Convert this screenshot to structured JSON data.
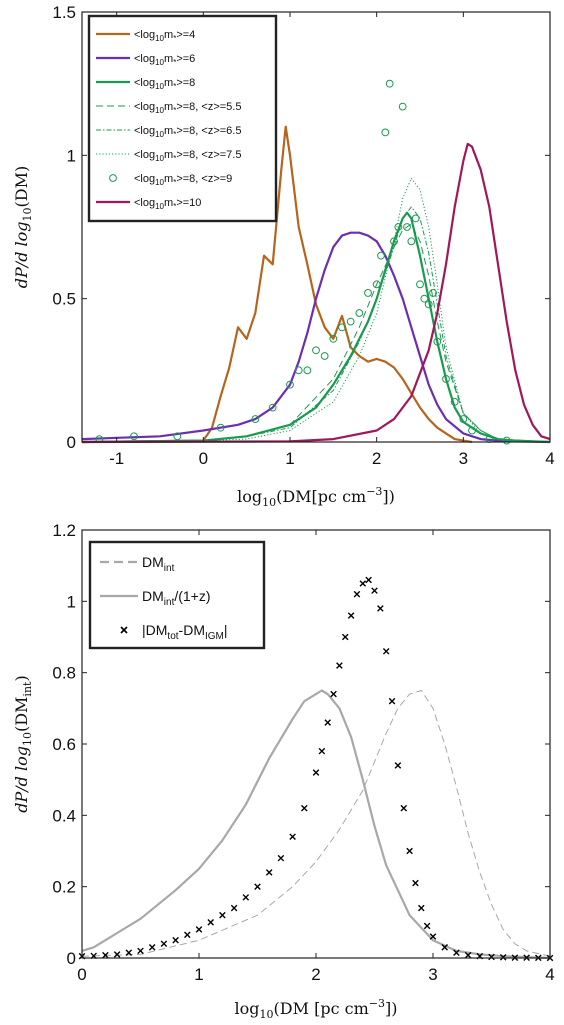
{
  "chart_data": [
    {
      "type": "line",
      "xlabel": "log10(DM[pc cm^-3])",
      "ylabel": "dP/dlog10(DM)",
      "xlim": [
        -1.4,
        4
      ],
      "ylim": [
        0,
        1.5
      ],
      "xticks": [
        "-1",
        "0",
        "1",
        "2",
        "3",
        "4"
      ],
      "yticks": [
        "0",
        "0.5",
        "1",
        "1.5"
      ],
      "grid": false,
      "legend_position": "top-left",
      "series": [
        {
          "name": "<log10m*>=4",
          "style": "solid",
          "color": "#b5651d",
          "x": [
            -1.4,
            0,
            0.1,
            0.2,
            0.3,
            0.4,
            0.5,
            0.6,
            0.7,
            0.8,
            0.9,
            0.95,
            1.0,
            1.1,
            1.2,
            1.3,
            1.4,
            1.5,
            1.6,
            1.7,
            1.8,
            1.9,
            2.0,
            2.1,
            2.2,
            2.3,
            2.4,
            2.5,
            2.6,
            2.7,
            2.8,
            2.9,
            3.0,
            3.1
          ],
          "y": [
            0,
            0.005,
            0.05,
            0.16,
            0.26,
            0.4,
            0.36,
            0.45,
            0.65,
            0.62,
            0.95,
            1.1,
            1.0,
            0.75,
            0.62,
            0.48,
            0.4,
            0.36,
            0.44,
            0.33,
            0.3,
            0.28,
            0.29,
            0.28,
            0.26,
            0.22,
            0.17,
            0.12,
            0.08,
            0.05,
            0.03,
            0.01,
            0.005,
            0
          ]
        },
        {
          "name": "<log10m*>=6",
          "style": "solid",
          "color": "#6b2fb3",
          "x": [
            -1.4,
            -0.5,
            0,
            0.4,
            0.6,
            0.8,
            1.0,
            1.1,
            1.2,
            1.3,
            1.4,
            1.5,
            1.6,
            1.7,
            1.8,
            1.9,
            2.0,
            2.1,
            2.2,
            2.3,
            2.4,
            2.5,
            2.6,
            2.7,
            2.8,
            3.0,
            3.2,
            3.4,
            3.6,
            3.8,
            4.0
          ],
          "y": [
            0.01,
            0.02,
            0.04,
            0.06,
            0.08,
            0.12,
            0.2,
            0.28,
            0.38,
            0.5,
            0.6,
            0.68,
            0.72,
            0.73,
            0.73,
            0.72,
            0.7,
            0.65,
            0.58,
            0.5,
            0.4,
            0.3,
            0.2,
            0.13,
            0.08,
            0.03,
            0.01,
            0.005,
            0.002,
            0.001,
            0
          ]
        },
        {
          "name": "<log10m*>=8",
          "style": "solid",
          "color": "#1a9a50",
          "x": [
            -1.4,
            0,
            0.5,
            1.0,
            1.3,
            1.5,
            1.7,
            1.9,
            2.0,
            2.1,
            2.2,
            2.3,
            2.35,
            2.4,
            2.5,
            2.6,
            2.7,
            2.8,
            2.9,
            3.0,
            3.2,
            3.4,
            3.6,
            4.0
          ],
          "y": [
            0,
            0.005,
            0.02,
            0.06,
            0.12,
            0.2,
            0.3,
            0.42,
            0.5,
            0.6,
            0.7,
            0.78,
            0.8,
            0.78,
            0.65,
            0.5,
            0.35,
            0.22,
            0.12,
            0.07,
            0.03,
            0.01,
            0.005,
            0
          ]
        },
        {
          "name": "<log10m*>=8, <z>=5.5",
          "style": "dashed",
          "color": "#1a9a50",
          "x": [
            -1.4,
            0,
            0.5,
            1.0,
            1.5,
            1.8,
            2.0,
            2.2,
            2.3,
            2.4,
            2.5,
            2.6,
            2.7,
            2.8,
            3.0,
            3.2,
            3.4,
            4.0
          ],
          "y": [
            0,
            0.005,
            0.02,
            0.06,
            0.22,
            0.4,
            0.55,
            0.68,
            0.74,
            0.76,
            0.7,
            0.58,
            0.42,
            0.28,
            0.1,
            0.04,
            0.01,
            0
          ]
        },
        {
          "name": "<log10m*>=8, <z>=6.5",
          "style": "dashdot",
          "color": "#1a9a50",
          "x": [
            -1.4,
            0,
            0.5,
            1.0,
            1.5,
            1.8,
            2.0,
            2.2,
            2.3,
            2.4,
            2.5,
            2.6,
            2.7,
            2.8,
            3.0,
            3.2,
            3.4,
            4.0
          ],
          "y": [
            0,
            0.005,
            0.02,
            0.05,
            0.18,
            0.35,
            0.5,
            0.68,
            0.78,
            0.82,
            0.78,
            0.66,
            0.48,
            0.3,
            0.1,
            0.04,
            0.01,
            0
          ]
        },
        {
          "name": "<log10m*>=8, <z>=7.5",
          "style": "dotted",
          "color": "#1a9a50",
          "x": [
            -1.4,
            0,
            0.5,
            1.0,
            1.5,
            1.8,
            2.0,
            2.2,
            2.3,
            2.4,
            2.5,
            2.6,
            2.7,
            2.8,
            3.0,
            3.2,
            3.4,
            4.0
          ],
          "y": [
            0,
            0.005,
            0.01,
            0.04,
            0.14,
            0.3,
            0.45,
            0.7,
            0.85,
            0.92,
            0.88,
            0.75,
            0.55,
            0.33,
            0.1,
            0.03,
            0.01,
            0
          ]
        },
        {
          "name": "<log10m*>=8, <z>=9",
          "style": "circles",
          "color": "#1a9a50",
          "x": [
            -1.2,
            -0.8,
            -0.3,
            0.2,
            0.6,
            0.8,
            1.0,
            1.1,
            1.2,
            1.3,
            1.4,
            1.5,
            1.6,
            1.7,
            1.8,
            1.9,
            2.0,
            2.05,
            2.1,
            2.15,
            2.2,
            2.25,
            2.3,
            2.35,
            2.4,
            2.45,
            2.5,
            2.55,
            2.6,
            2.65,
            2.7,
            2.8,
            2.9,
            3.0,
            3.1,
            3.3,
            3.5
          ],
          "y": [
            0.01,
            0.02,
            0.02,
            0.05,
            0.08,
            0.12,
            0.2,
            0.25,
            0.25,
            0.32,
            0.3,
            0.36,
            0.4,
            0.42,
            0.45,
            0.52,
            0.55,
            0.65,
            1.08,
            1.25,
            0.7,
            0.75,
            1.17,
            0.75,
            0.7,
            0.78,
            0.55,
            0.5,
            0.48,
            0.52,
            0.35,
            0.22,
            0.14,
            0.08,
            0.04,
            0.01,
            0.005
          ]
        },
        {
          "name": "<log10m*>=10",
          "style": "solid",
          "color": "#a0185a",
          "x": [
            -1.4,
            1.0,
            1.5,
            2.0,
            2.2,
            2.4,
            2.6,
            2.7,
            2.8,
            2.9,
            3.0,
            3.05,
            3.1,
            3.2,
            3.3,
            3.4,
            3.5,
            3.6,
            3.7,
            3.8,
            3.9,
            4.0
          ],
          "y": [
            0,
            0.002,
            0.01,
            0.04,
            0.08,
            0.16,
            0.32,
            0.45,
            0.62,
            0.82,
            0.98,
            1.04,
            1.03,
            0.95,
            0.82,
            0.62,
            0.42,
            0.25,
            0.13,
            0.06,
            0.02,
            0.01
          ]
        }
      ]
    },
    {
      "type": "line",
      "xlabel": "log10(DM [pc cm^-3])",
      "ylabel": "dP/dlog10(DMint)",
      "xlim": [
        0,
        4
      ],
      "ylim": [
        0,
        1.2
      ],
      "xticks": [
        "0",
        "1",
        "2",
        "3",
        "4"
      ],
      "yticks": [
        "0",
        "0.2",
        "0.4",
        "0.6",
        "0.8",
        "1",
        "1.2"
      ],
      "grid": false,
      "legend_position": "top-left",
      "series": [
        {
          "name": "DMint",
          "style": "dashed",
          "color": "#a8a8a8",
          "x": [
            0,
            0.5,
            1.0,
            1.5,
            1.8,
            2.0,
            2.2,
            2.4,
            2.5,
            2.6,
            2.7,
            2.8,
            2.9,
            3.0,
            3.1,
            3.2,
            3.3,
            3.4,
            3.5,
            3.6,
            3.7,
            3.8,
            4.0
          ],
          "y": [
            0.005,
            0.01,
            0.05,
            0.12,
            0.2,
            0.27,
            0.36,
            0.47,
            0.55,
            0.63,
            0.7,
            0.74,
            0.75,
            0.7,
            0.6,
            0.48,
            0.35,
            0.24,
            0.15,
            0.08,
            0.04,
            0.02,
            0.005
          ]
        },
        {
          "name": "DMint/(1+z)",
          "style": "solid",
          "color": "#a8a8a8",
          "x": [
            0,
            0.1,
            0.2,
            0.3,
            0.5,
            0.8,
            1.0,
            1.2,
            1.4,
            1.6,
            1.8,
            1.9,
            2.0,
            2.05,
            2.1,
            2.2,
            2.3,
            2.4,
            2.5,
            2.6,
            2.8,
            3.0,
            3.2,
            3.4,
            3.6,
            4.0
          ],
          "y": [
            0.02,
            0.03,
            0.05,
            0.07,
            0.11,
            0.19,
            0.25,
            0.33,
            0.43,
            0.56,
            0.67,
            0.72,
            0.74,
            0.75,
            0.74,
            0.7,
            0.62,
            0.5,
            0.37,
            0.26,
            0.12,
            0.05,
            0.02,
            0.01,
            0.005,
            0
          ]
        },
        {
          "name": "|DMtot-DMIGM|",
          "style": "x-markers",
          "color": "#000000",
          "x": [
            0,
            0.1,
            0.2,
            0.3,
            0.4,
            0.5,
            0.6,
            0.7,
            0.8,
            0.9,
            1.0,
            1.1,
            1.2,
            1.3,
            1.4,
            1.5,
            1.6,
            1.7,
            1.8,
            1.9,
            2.0,
            2.05,
            2.1,
            2.15,
            2.2,
            2.25,
            2.3,
            2.35,
            2.4,
            2.45,
            2.5,
            2.55,
            2.6,
            2.65,
            2.7,
            2.75,
            2.8,
            2.85,
            2.9,
            2.95,
            3.0,
            3.1,
            3.2,
            3.3,
            3.4,
            3.5,
            3.6,
            3.7,
            3.8,
            3.9,
            4.0
          ],
          "y": [
            0.005,
            0.006,
            0.008,
            0.01,
            0.015,
            0.02,
            0.03,
            0.04,
            0.05,
            0.065,
            0.08,
            0.1,
            0.12,
            0.14,
            0.17,
            0.2,
            0.24,
            0.28,
            0.34,
            0.42,
            0.52,
            0.58,
            0.66,
            0.74,
            0.82,
            0.9,
            0.96,
            1.02,
            1.05,
            1.06,
            1.03,
            0.98,
            0.86,
            0.72,
            0.54,
            0.42,
            0.3,
            0.21,
            0.14,
            0.09,
            0.06,
            0.03,
            0.015,
            0.008,
            0.005,
            0.003,
            0.002,
            0.001,
            0.001,
            0.0005,
            0
          ]
        }
      ]
    }
  ],
  "top": {
    "x_title": "log",
    "x_sub": "10",
    "x_title_tail": "(DM[pc cm",
    "x_sup": "−3",
    "x_end": "])",
    "y_pre": "dP/d log",
    "y_sub": "10",
    "y_tail": "(DM)",
    "legend": [
      {
        "main": "<log",
        "sub": "10",
        "rest": "m",
        "star": "*",
        "end": ">=4"
      },
      {
        "main": "<log",
        "sub": "10",
        "rest": "m",
        "star": "*",
        "end": ">=6"
      },
      {
        "main": "<log",
        "sub": "10",
        "rest": "m",
        "star": "*",
        "end": ">=8"
      },
      {
        "main": "<log",
        "sub": "10",
        "rest": "m",
        "star": "*",
        "end": ">=8, <z>=5.5"
      },
      {
        "main": "<log",
        "sub": "10",
        "rest": "m",
        "star": "*",
        "end": ">=8, <z>=6.5"
      },
      {
        "main": "<log",
        "sub": "10",
        "rest": "m",
        "star": "*",
        "end": ">=8, <z>=7.5"
      },
      {
        "main": "<log",
        "sub": "10",
        "rest": "m",
        "star": "*",
        "end": ">=8, <z>=9"
      },
      {
        "main": "<log",
        "sub": "10",
        "rest": "m",
        "star": "*",
        "end": ">=10"
      }
    ]
  },
  "bottom": {
    "x_title": "log",
    "x_sub": "10",
    "x_title_tail": "(DM [pc cm",
    "x_sup": "−3",
    "x_end": "])",
    "y_pre": "dP/d log",
    "y_sub": "10",
    "y_tail": "(DM",
    "y_tail_sub": "int",
    "y_end": ")",
    "legend": [
      {
        "main": "DM",
        "sub": "int",
        "tail": ""
      },
      {
        "main": "DM",
        "sub": "int",
        "tail": "/(1+z)"
      },
      {
        "main": "|DM",
        "sub": "tot",
        "mid": "-DM",
        "sub2": "IGM",
        "tail": "|"
      }
    ]
  }
}
